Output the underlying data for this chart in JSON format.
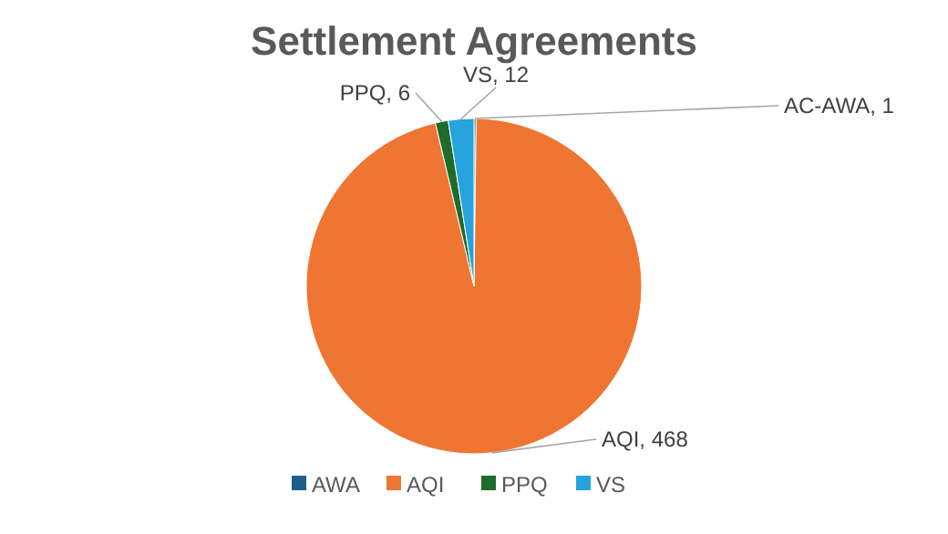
{
  "chart_data": {
    "type": "pie",
    "title": "Settlement Agreements",
    "categories": [
      "AWA",
      "AQI",
      "PPQ",
      "VS"
    ],
    "values": [
      1,
      468,
      6,
      12
    ],
    "colors": [
      "#1f5e8c",
      "#ef7632",
      "#1e6b2a",
      "#27a3dd"
    ],
    "value_labels": [
      "AC-AWA, 1",
      "AQI, 468",
      "PPQ, 6",
      "VS, 12"
    ],
    "legend": "bottom"
  }
}
